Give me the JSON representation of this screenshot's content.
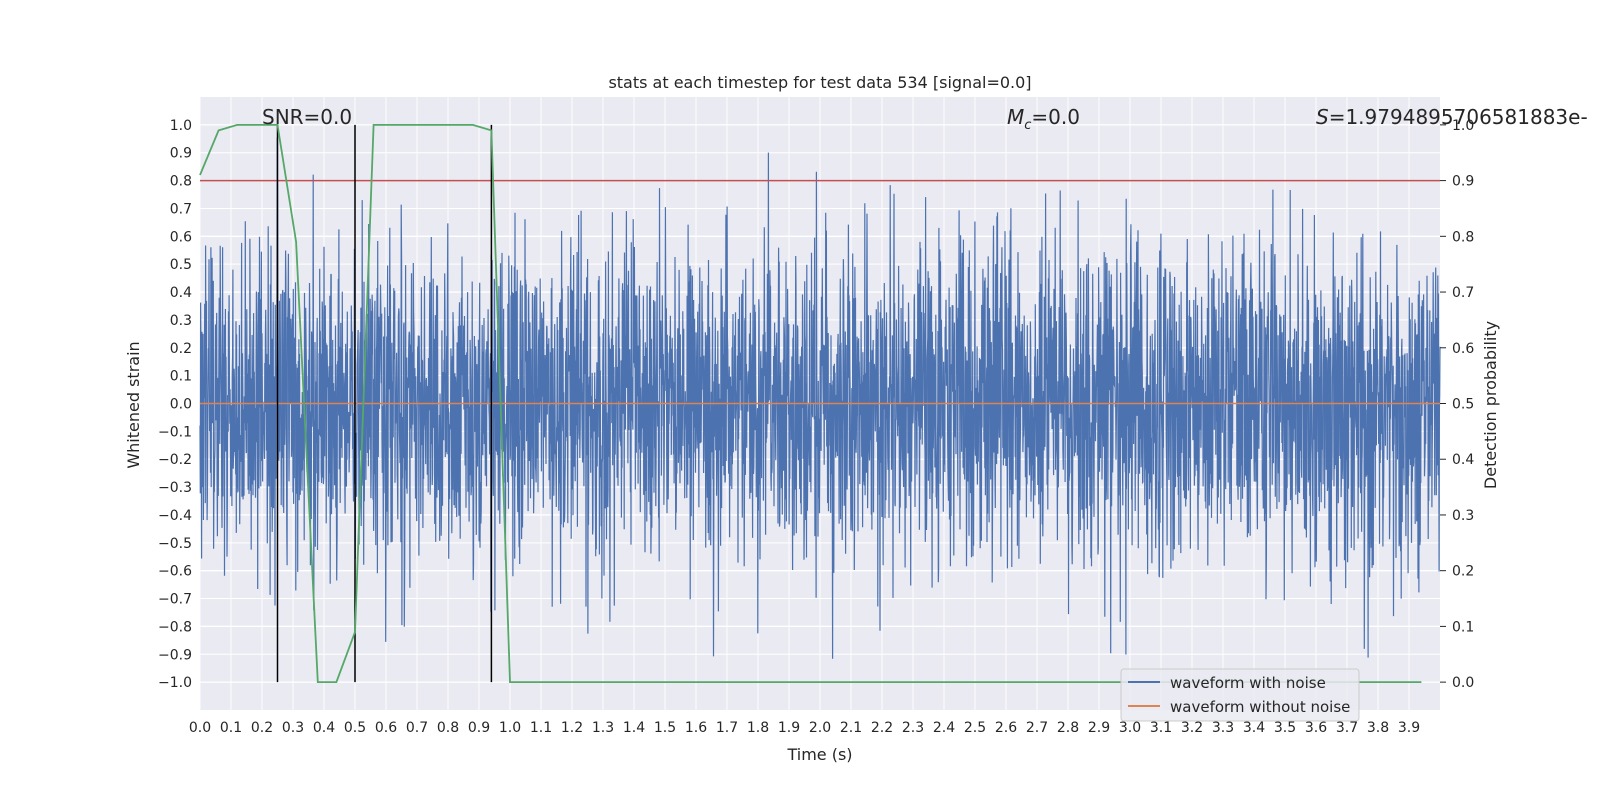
{
  "chart_data": {
    "type": "line",
    "title": "stats at each timestep for test data 534 [signal=0.0]",
    "xlabel": "Time (s)",
    "ylabel": "Whitened strain",
    "y2label": "Detection probability",
    "xlim": [
      0.0,
      4.0
    ],
    "ylim": [
      -1.1,
      1.1
    ],
    "y2lim": [
      -0.05,
      1.05
    ],
    "x_ticks": [
      "0.0",
      "0.1",
      "0.2",
      "0.3",
      "0.4",
      "0.5",
      "0.6",
      "0.7",
      "0.8",
      "0.9",
      "1.0",
      "1.1",
      "1.2",
      "1.3",
      "1.4",
      "1.5",
      "1.6",
      "1.7",
      "1.8",
      "1.9",
      "2.0",
      "2.1",
      "2.2",
      "2.3",
      "2.4",
      "2.5",
      "2.6",
      "2.7",
      "2.8",
      "2.9",
      "3.0",
      "3.1",
      "3.2",
      "3.3",
      "3.4",
      "3.5",
      "3.6",
      "3.7",
      "3.8",
      "3.9"
    ],
    "y_ticks": [
      "1.0",
      "0.9",
      "0.8",
      "0.7",
      "0.6",
      "0.5",
      "0.4",
      "0.3",
      "0.2",
      "0.1",
      "0.0",
      "-0.1",
      "-0.2",
      "-0.3",
      "-0.4",
      "-0.5",
      "-0.6",
      "-0.7",
      "-0.8",
      "-0.9",
      "-1.0"
    ],
    "y2_ticks": [
      "1.0",
      "0.9",
      "0.8",
      "0.7",
      "0.6",
      "0.5",
      "0.4",
      "0.3",
      "0.2",
      "0.1",
      "0.0"
    ],
    "annotations": {
      "snr": "SNR=0.0",
      "mc_symbol": "M",
      "mc_sub": "c",
      "mc_value": "=0.0",
      "s_symbol": "S",
      "s_value": "=1.979489570658​1883e-"
    },
    "threshold_probability": 0.9,
    "vertical_markers": [
      0.25,
      0.5,
      0.94
    ],
    "series": [
      {
        "name": "waveform with noise",
        "color": "#4c72b0",
        "description_stat": {
          "noise_std": 0.28,
          "clip": 1.0,
          "samples": 4000
        }
      },
      {
        "name": "waveform without noise",
        "color": "#dd8452",
        "values_constant": 0.0
      },
      {
        "name": "detection probability",
        "color": "#55a868",
        "x": [
          0.0,
          0.06,
          0.12,
          0.19,
          0.25,
          0.31,
          0.38,
          0.44,
          0.5,
          0.56,
          0.62,
          0.69,
          0.75,
          0.81,
          0.88,
          0.94,
          1.0,
          1.06,
          3.94
        ],
        "values": [
          0.91,
          0.99,
          1.0,
          1.0,
          1.0,
          0.79,
          0.0,
          0.0,
          0.09,
          1.0,
          1.0,
          1.0,
          1.0,
          1.0,
          1.0,
          0.99,
          0.0,
          0.0,
          0.0
        ]
      }
    ],
    "legend": {
      "position": "lower-right",
      "entries": [
        "waveform with noise",
        "waveform without noise"
      ]
    },
    "colors": {
      "background": "#eaeaf2",
      "grid": "#ffffff",
      "threshold": "#c44e52",
      "marker": "#000000",
      "text": "#262626"
    }
  }
}
